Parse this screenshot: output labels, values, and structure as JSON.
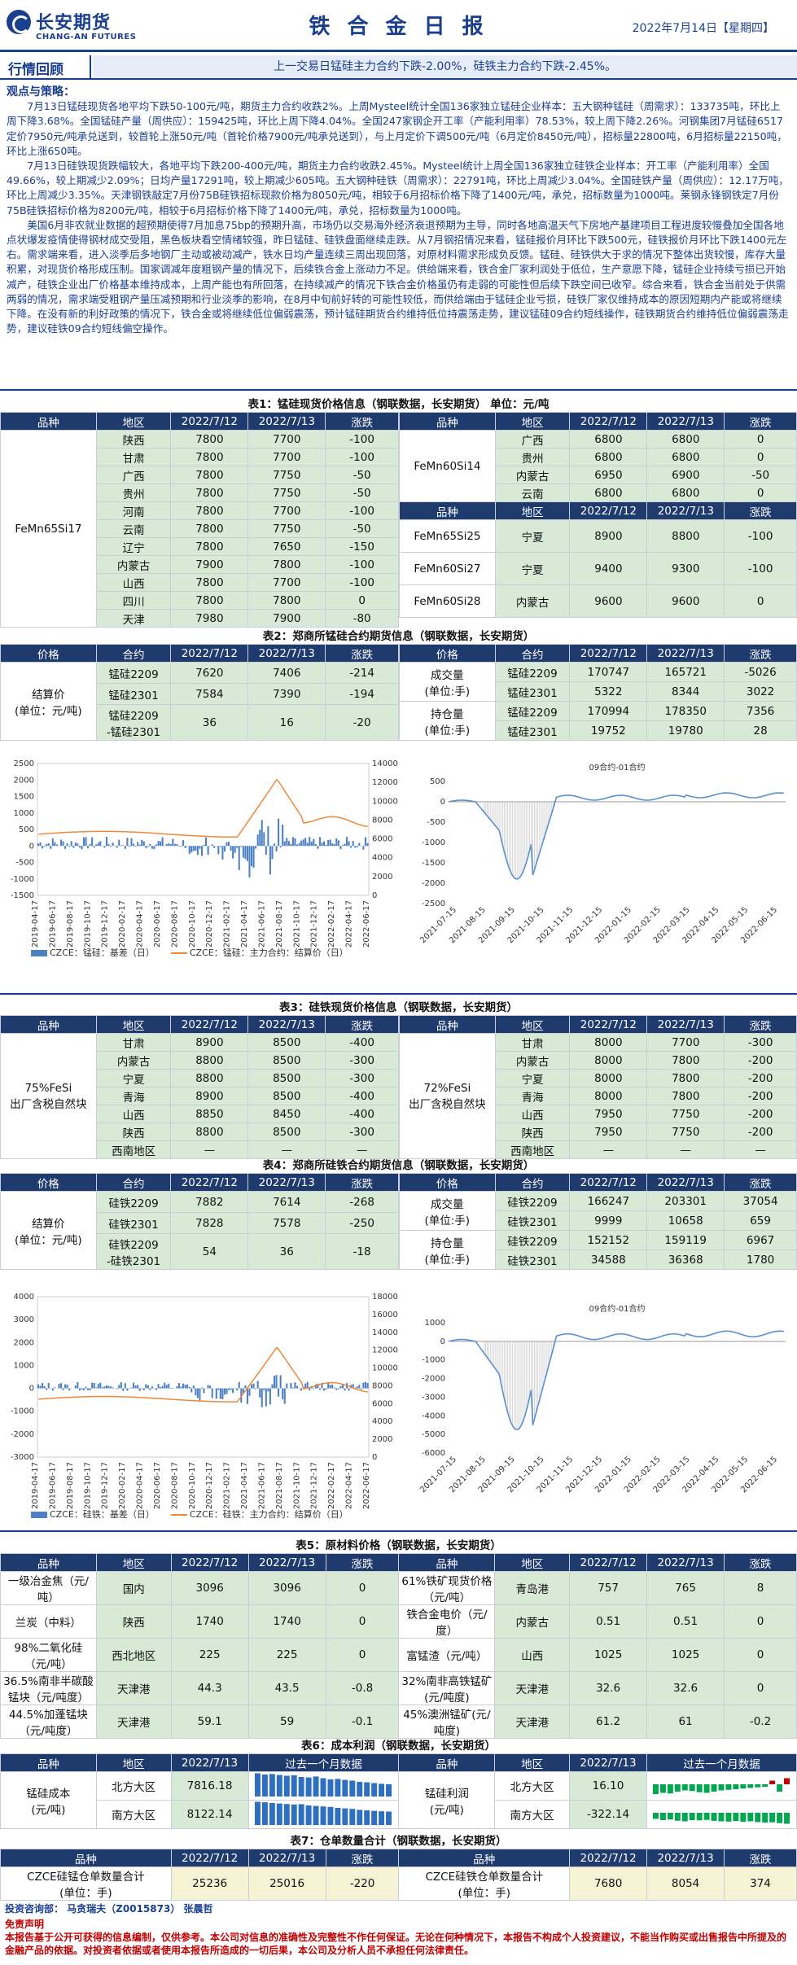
{
  "header": {
    "logo_cn": "长安期货",
    "logo_en": "CHANG-AN FUTURES",
    "title": "铁 合 金 日 报",
    "date": "2022年7月14日【星期四】"
  },
  "review": {
    "tag": "行情回顾",
    "text": "上一交易日锰硅主力合约下跌-2.00%，硅铁主力合约下跌-2.45%。"
  },
  "view": {
    "heading": "观点与策略：",
    "p1": "7月13日锰硅现货各地平均下跌50-100元/吨，期货主力合约收跌2%。上周Mysteel统计全国136家独立锰硅企业样本：五大钢种锰硅（周需求）：133735吨，环比上周下降3.68%。全国锰硅产量（周供应）：159425吨，环比上周下降4.04%。全国247家钢企开工率（产能利用率）78.53%，较上周下降2.26%。河钢集团7月锰硅6517定价7950元/吨承兑送到，较首轮上涨50元/吨（首轮价格7900元/吨承兑送到），与上月定价下调500元/吨（6月定价8450元/吨），招标量22800吨，6月招标量22150吨，环比上涨650吨。",
    "p2": "7月13日硅铁现货跌幅较大，各地平均下跌200-400元/吨，期货主力合约收跌2.45%。Mysteel统计上周全国136家独立硅铁企业样本：开工率（产能利用率）全国49.66%，较上期减少2.09%；日均产量17291吨，较上期减少605吨。五大钢种硅铁（周需求）：22791吨，环比上周减少3.04%。全国硅铁产量（周供应）：12.17万吨，环比上周减少3.35%。天津钢铁敲定7月份75B硅铁招标现款价格为8050元/吨，相较于6月招标价格下降了1400元/吨，承兑，招标数量为1000吨。莱钢永锋钢铁定7月份75B硅铁招标价格为8200元/吨，相较于6月招标价格下降了1400元/吨，承兑，招标数量为1000吨。",
    "p3": "美国6月非农就业数据的超预期使得7月加息75bp的预期升高，市场仍以交易海外经济衰退预期为主导，同时各地高温天气下房地产基建项目工程进度较慢叠加全国各地点状爆发疫情使得钢材成交受阻，黑色板块看空情绪较强，昨日锰硅、硅铁盘面继续走跌。从7月钢招情况来看，锰硅报价月环比下跌500元，硅铁报价月环比下跌1400元左右。需求端来看，进入淡季后多地钢厂主动或被动减产，铁水日均产量连续三周出现回落，对原材料需求形成负反馈。锰硅、硅铁供大于求的情况下整体出货较慢，库存大量积累，对现货价格形成压制。国家调减年度粗钢产量的情况下，后续铁合金上涨动力不足。供给端来看，铁合金厂家利润处于低位，生产意愿下降，锰硅企业持续亏损已开始减产，硅铁企业出厂价格基本维持成本，上周产能也有所回落，在持续减产的情况下铁合金价格虽仍有走弱的可能性但后续下跌空间已收窄。综合来看，铁合金当前处于供需两弱的情况，需求端受粗钢产量压减预期和行业淡季的影响，在8月中旬前好转的可能性较低，而供给端由于锰硅企业亏损，硅铁厂家仅维持成本的原因短期内产能或将继续下降。在没有新的利好政策的情况下，铁合金或将继续低位偏弱震荡，预计锰硅期货合约维持低位持震荡走势，建议锰硅09合约短线操作，硅铁期货合约维持低位偏弱震荡走势，建议硅铁09合约短线偏空操作。"
  },
  "t1": {
    "caption": "表1：锰硅现货价格信息（钢联数据，长安期货）  单位：元/吨",
    "left_headers": [
      "品种",
      "地区",
      "2022/7/12",
      "2022/7/13",
      "涨跌"
    ],
    "left_product": "FeMn65Si17",
    "left_rows": [
      [
        "陕西",
        "7800",
        "7700",
        "-100"
      ],
      [
        "甘肃",
        "7800",
        "7700",
        "-100"
      ],
      [
        "广西",
        "7800",
        "7750",
        "-50"
      ],
      [
        "贵州",
        "7800",
        "7750",
        "-50"
      ],
      [
        "河南",
        "7800",
        "7700",
        "-100"
      ],
      [
        "云南",
        "7800",
        "7750",
        "-50"
      ],
      [
        "辽宁",
        "7800",
        "7650",
        "-150"
      ],
      [
        "内蒙古",
        "7900",
        "7800",
        "-100"
      ],
      [
        "山西",
        "7800",
        "7700",
        "-100"
      ],
      [
        "四川",
        "7800",
        "7800",
        "0"
      ],
      [
        "天津",
        "7980",
        "7900",
        "-80"
      ]
    ],
    "right_headers": [
      "品种",
      "地区",
      "2022/7/12",
      "2022/7/13",
      "涨跌"
    ],
    "right_top_product": "FeMn60Si14",
    "right_top_rows": [
      [
        "广西",
        "6800",
        "6800",
        "0"
      ],
      [
        "贵州",
        "6800",
        "6800",
        "0"
      ],
      [
        "内蒙古",
        "6950",
        "6900",
        "-50"
      ],
      [
        "云南",
        "6800",
        "6800",
        "0"
      ]
    ],
    "right_bottom": [
      {
        "product": "FeMn65Si25",
        "region": "宁夏",
        "v1": "8900",
        "v2": "8800",
        "chg": "-100"
      },
      {
        "product": "FeMn60Si27",
        "region": "宁夏",
        "v1": "9400",
        "v2": "9300",
        "chg": "-100"
      },
      {
        "product": "FeMn60Si28",
        "region": "内蒙古",
        "v1": "9600",
        "v2": "9600",
        "chg": "0"
      }
    ]
  },
  "t2": {
    "caption": "表2：郑商所锰硅合约期货信息（钢联数据，长安期货）",
    "left_headers": [
      "价格",
      "合约",
      "2022/7/12",
      "2022/7/13",
      "涨跌"
    ],
    "left_label": "结算价\n(单位：元/吨)",
    "left_rows": [
      [
        "锰硅2209",
        "7620",
        "7406",
        "-214"
      ],
      [
        "锰硅2301",
        "7584",
        "7390",
        "-194"
      ],
      [
        "锰硅2209\n-锰硅2301",
        "36",
        "16",
        "-20"
      ]
    ],
    "right_headers": [
      "价格",
      "合约",
      "2022/7/12",
      "2022/7/13",
      "涨跌"
    ],
    "right_groups": [
      {
        "label": "成交量\n(单位:手)",
        "rows": [
          [
            "锰硅2209",
            "170747",
            "165721",
            "-5026"
          ],
          [
            "锰硅2301",
            "5322",
            "8344",
            "3022"
          ]
        ]
      },
      {
        "label": "持仓量\n(单位:手)",
        "rows": [
          [
            "锰硅2209",
            "170994",
            "178350",
            "7356"
          ],
          [
            "锰硅2301",
            "19752",
            "19780",
            "28"
          ]
        ]
      }
    ]
  },
  "c1": {
    "chart_data": {
      "type": "bar+line",
      "y_left_ticks": [
        "-1500",
        "-1000",
        "-500",
        "0",
        "500",
        "1000",
        "1500",
        "2000",
        "2500"
      ],
      "y_right_ticks": [
        "0",
        "2000",
        "4000",
        "6000",
        "8000",
        "10000",
        "12000",
        "14000"
      ],
      "x_ticks": [
        "2019-04-17",
        "2019-06-17",
        "2019-08-17",
        "2019-10-17",
        "2019-12-17",
        "2020-02-17",
        "2020-04-17",
        "2020-06-17",
        "2020-08-17",
        "2020-10-17",
        "2020-12-17",
        "2021-02-17",
        "2021-04-17",
        "2021-06-17",
        "2021-08-17",
        "2021-10-17",
        "2021-12-17",
        "2022-02-17",
        "2022-04-17",
        "2022-06-17"
      ],
      "series": [
        {
          "name": "CZCE：锰硅：基差（日）",
          "type": "bar"
        },
        {
          "name": "CZCE：锰硅：主力合约：结算价（日）",
          "type": "line"
        }
      ],
      "ylim_left": [
        -1500,
        2500
      ],
      "ylim_right": [
        0,
        14000
      ]
    }
  },
  "c2": {
    "chart_data": {
      "type": "line",
      "title": "09合约-01合约",
      "y_ticks": [
        "-2500",
        "-2000",
        "-1500",
        "-1000",
        "-500",
        "0",
        "500"
      ],
      "x_ticks": [
        "2021-07-15",
        "2021-08-15",
        "2021-09-15",
        "2021-10-15",
        "2021-11-15",
        "2021-12-15",
        "2022-01-15",
        "2022-02-15",
        "2022-03-15",
        "2022-04-15",
        "2022-05-15",
        "2022-06-15"
      ],
      "ylim": [
        -2500,
        500
      ]
    }
  },
  "t3": {
    "caption": "表3：硅铁现货价格信息（钢联数据，长安期货）",
    "left_headers": [
      "品种",
      "地区",
      "2022/7/12",
      "2022/7/13",
      "涨跌"
    ],
    "left_product": "75%FeSi\n出厂含税自然块",
    "left_rows": [
      [
        "甘肃",
        "8900",
        "8500",
        "-400"
      ],
      [
        "内蒙古",
        "8800",
        "8500",
        "-300"
      ],
      [
        "宁夏",
        "8800",
        "8500",
        "-300"
      ],
      [
        "青海",
        "8900",
        "8500",
        "-400"
      ],
      [
        "山西",
        "8850",
        "8450",
        "-400"
      ],
      [
        "陕西",
        "8800",
        "8500",
        "-300"
      ],
      [
        "西南地区",
        "—",
        "—",
        "—"
      ]
    ],
    "right_headers": [
      "品种",
      "地区",
      "2022/7/12",
      "2022/7/13",
      "涨跌"
    ],
    "right_product": "72%FeSi\n出厂含税自然块",
    "right_rows": [
      [
        "甘肃",
        "8000",
        "7700",
        "-300"
      ],
      [
        "内蒙古",
        "8000",
        "7800",
        "-200"
      ],
      [
        "宁夏",
        "8000",
        "7800",
        "-200"
      ],
      [
        "青海",
        "8000",
        "7800",
        "-200"
      ],
      [
        "山西",
        "7950",
        "7750",
        "-200"
      ],
      [
        "陕西",
        "7950",
        "7750",
        "-200"
      ],
      [
        "西南地区",
        "—",
        "—",
        "—"
      ]
    ]
  },
  "t4": {
    "caption": "表4：郑商所硅铁合约期货信息（钢联数据，长安期货）",
    "left_headers": [
      "价格",
      "合约",
      "2022/7/12",
      "2022/7/13",
      "涨跌"
    ],
    "left_label": "结算价\n(单位：元/吨)",
    "left_rows": [
      [
        "硅铁2209",
        "7882",
        "7614",
        "-268"
      ],
      [
        "硅铁2301",
        "7828",
        "7578",
        "-250"
      ],
      [
        "硅铁2209\n-硅铁2301",
        "54",
        "36",
        "-18"
      ]
    ],
    "right_headers": [
      "价格",
      "合约",
      "2022/7/12",
      "2022/7/13",
      "涨跌"
    ],
    "right_groups": [
      {
        "label": "成交量\n(单位:手)",
        "rows": [
          [
            "硅铁2209",
            "166247",
            "203301",
            "37054"
          ],
          [
            "硅铁2301",
            "9999",
            "10658",
            "659"
          ]
        ]
      },
      {
        "label": "持仓量\n(单位:手)",
        "rows": [
          [
            "硅铁2209",
            "152152",
            "159119",
            "6967"
          ],
          [
            "硅铁2301",
            "34588",
            "36368",
            "1780"
          ]
        ]
      }
    ]
  },
  "c3": {
    "chart_data": {
      "type": "bar+line",
      "y_left_ticks": [
        "-3000",
        "-2000",
        "-1000",
        "0",
        "1000",
        "2000",
        "3000",
        "4000"
      ],
      "y_right_ticks": [
        "0",
        "2000",
        "4000",
        "6000",
        "8000",
        "10000",
        "12000",
        "14000",
        "16000",
        "18000"
      ],
      "x_ticks": [
        "2019-04-17",
        "2019-06-17",
        "2019-08-17",
        "2019-10-17",
        "2019-12-17",
        "2020-02-17",
        "2020-04-17",
        "2020-06-17",
        "2020-08-17",
        "2020-10-17",
        "2020-12-17",
        "2021-02-17",
        "2021-04-17",
        "2021-06-17",
        "2021-08-17",
        "2021-10-17",
        "2021-12-17",
        "2022-02-17",
        "2022-04-17",
        "2022-06-17"
      ],
      "series": [
        {
          "name": "CZCE：硅铁：基差（日）",
          "type": "bar"
        },
        {
          "name": "CZCE：硅铁：主力合约：结算价（日）",
          "type": "line"
        }
      ],
      "ylim_left": [
        -3000,
        4000
      ],
      "ylim_right": [
        0,
        18000
      ]
    }
  },
  "c4": {
    "chart_data": {
      "type": "line",
      "title": "09合约-01合约",
      "y_ticks": [
        "-6000",
        "-5000",
        "-4000",
        "-3000",
        "-2000",
        "-1000",
        "0",
        "1000"
      ],
      "x_ticks": [
        "2021-07-15",
        "2021-08-15",
        "2021-09-15",
        "2021-10-15",
        "2021-11-15",
        "2021-12-15",
        "2022-01-15",
        "2022-02-15",
        "2022-03-15",
        "2022-04-15",
        "2022-05-15",
        "2022-06-15"
      ],
      "ylim": [
        -6000,
        1000
      ]
    }
  },
  "t5": {
    "caption": "表5：原材料价格（钢联数据，长安期货）",
    "headers": [
      "品种",
      "地区",
      "2022/7/12",
      "2022/7/13",
      "涨跌",
      "品种",
      "地区",
      "2022/7/12",
      "2022/7/13",
      "涨跌"
    ],
    "rows": [
      [
        "一级冶金焦（元/吨）",
        "国内",
        "3096",
        "3096",
        "0",
        "61%铁矿现货价格（元/吨）",
        "青岛港",
        "757",
        "765",
        "8"
      ],
      [
        "兰炭（中料）",
        "陕西",
        "1740",
        "1740",
        "0",
        "铁合金电价（元/度）",
        "内蒙古",
        "0.51",
        "0.51",
        "0"
      ],
      [
        "98%二氧化硅（元/吨）",
        "西北地区",
        "225",
        "225",
        "0",
        "富锰渣（元/吨）",
        "山西",
        "1025",
        "1025",
        "0"
      ],
      [
        "36.5%南非半碳酸锰块（元/吨度）",
        "天津港",
        "44.3",
        "43.5",
        "-0.8",
        "32%南非高铁锰矿(元/吨度)",
        "天津港",
        "32.6",
        "32.6",
        "0"
      ],
      [
        "44.5%加蓬锰块（元/吨度）",
        "天津港",
        "59.1",
        "59",
        "-0.1",
        "45%澳洲锰矿(元/吨度)",
        "天津港",
        "61.2",
        "61",
        "-0.2"
      ]
    ]
  },
  "t6": {
    "caption": "表6：成本利润（钢联数据，长安期货）",
    "headers": [
      "品种",
      "地区",
      "2022/7/13",
      "过去一个月数据",
      "品种",
      "地区",
      "2022/7/13",
      "过去一个月数据"
    ],
    "left_label": "锰硅成本\n(元/吨)",
    "left_rows": [
      [
        "北方大区",
        "7816.18"
      ],
      [
        "南方大区",
        "8122.14"
      ]
    ],
    "right_label": "锰硅利润\n(元/吨)",
    "right_rows": [
      [
        "北方大区",
        "16.10"
      ],
      [
        "南方大区",
        "-322.14"
      ]
    ],
    "spark_cost_n": [
      0.95,
      0.9,
      0.92,
      0.88,
      0.85,
      0.87,
      0.8,
      0.78,
      0.82,
      0.75,
      0.7,
      0.72,
      0.68,
      0.65,
      0.6,
      0.58,
      0.55,
      0.52,
      0.5
    ],
    "spark_cost_s": [
      0.95,
      0.93,
      0.9,
      0.88,
      0.86,
      0.84,
      0.85,
      0.8,
      0.78,
      0.76,
      0.74,
      0.7,
      0.68,
      0.66,
      0.62,
      0.6,
      0.58,
      0.56,
      0.55
    ],
    "spark_profit_n": [
      -0.8,
      -0.7,
      -0.75,
      -0.6,
      -0.5,
      -0.55,
      -0.65,
      -0.7,
      -0.6,
      -0.5,
      -0.45,
      -0.4,
      -0.35,
      -0.3,
      -0.25,
      -0.2,
      0.3,
      -0.6,
      0.5
    ],
    "spark_profit_s": [
      -0.5,
      -0.6,
      -0.55,
      -0.65,
      -0.7,
      -0.6,
      -0.62,
      -0.58,
      -0.66,
      -0.7,
      -0.72,
      -0.68,
      -0.74,
      -0.7,
      -0.76,
      -0.8,
      -0.78,
      -0.85,
      -0.9
    ]
  },
  "t7": {
    "caption": "表7：仓单数量合计（钢联数据，长安期货）",
    "headers": [
      "品种",
      "2022/7/12",
      "2022/7/13",
      "涨跌",
      "品种",
      "2022/7/12",
      "2022/7/13",
      "涨跌"
    ],
    "row": [
      "CZCE硅锰仓单数量合计\n(单位：手)",
      "25236",
      "25016",
      "-220",
      "CZCE硅铁仓单数量合计\n(单位：手)",
      "7680",
      "8054",
      "374"
    ]
  },
  "footer": {
    "analyst": "投资咨询部：  马贪瑞夫（Z0015873）  张晨哲",
    "disclaimer_title": "免责声明",
    "disclaimer": "本报告基于公开可获得的信息编制，仅供参考。本公司对信息的准确性及完整性不作任何保证。无论在何种情况下，本报告不构成个人投资建议，不能当作购买或出售报告中所提及的金融产品的依据。对投资者依据或者使用本报告所造成的一切后果，本公司及分析人员不承担任何法律责任。"
  }
}
